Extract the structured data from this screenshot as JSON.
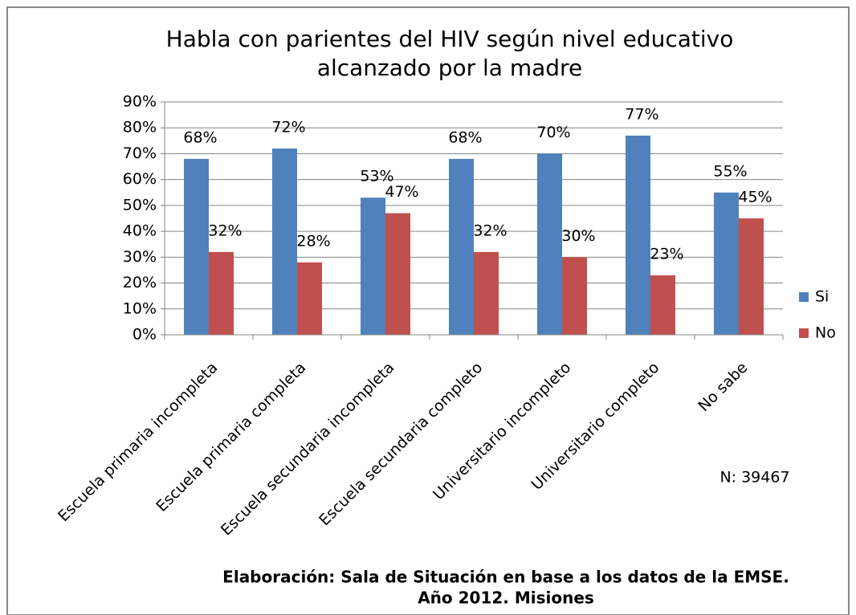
{
  "chart_data": {
    "type": "bar",
    "title": [
      "Habla con parientes del HIV según nivel educativo",
      "alcanzado por la madre"
    ],
    "categories": [
      "Escuela primaria incompleta",
      "Escuela primaria completa",
      "Escuela secundaria incompleta",
      "Escuela secundaria completo",
      "Universitario incompleto",
      "Universitario completo",
      "No sabe"
    ],
    "series": [
      {
        "name": "Si",
        "color": "#4f81bd",
        "values": [
          68,
          72,
          53,
          68,
          70,
          77,
          55
        ],
        "value_labels": [
          "68%",
          "72%",
          "53%",
          "68%",
          "70%",
          "77%",
          "55%"
        ]
      },
      {
        "name": "No",
        "color": "#c0504d",
        "values": [
          32,
          28,
          47,
          32,
          30,
          23,
          45
        ],
        "value_labels": [
          "32%",
          "28%",
          "47%",
          "32%",
          "30%",
          "23%",
          "45%"
        ]
      }
    ],
    "ylim": [
      0,
      90
    ],
    "yticks": [
      {
        "value": 0,
        "label": "0%"
      },
      {
        "value": 10,
        "label": "10%"
      },
      {
        "value": 20,
        "label": "20%"
      },
      {
        "value": 30,
        "label": "30%"
      },
      {
        "value": 40,
        "label": "40%"
      },
      {
        "value": 50,
        "label": "50%"
      },
      {
        "value": 60,
        "label": "60%"
      },
      {
        "value": 70,
        "label": "70%"
      },
      {
        "value": 80,
        "label": "80%"
      },
      {
        "value": 90,
        "label": "90%"
      }
    ],
    "grid": true,
    "legend": "right",
    "annotations": [
      "N: 39467"
    ],
    "footnote": [
      "Elaboración: Sala de Situación en base a los datos de la EMSE.",
      "Año 2012. Misiones"
    ]
  }
}
